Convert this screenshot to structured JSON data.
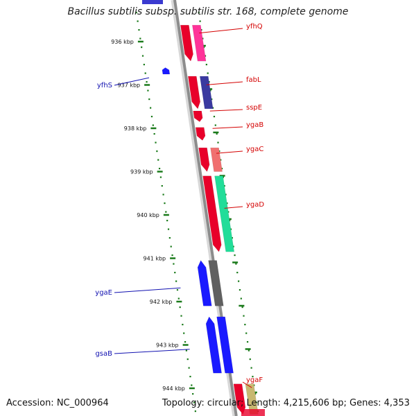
{
  "title": "Bacillus subtilis subsp. subtilis str. 168, complete genome",
  "footer": {
    "accession": "Accession: NC_000964",
    "topology": "Topology: circular; Length: 4,215,606 bp; Genes: 4,353"
  },
  "colors": {
    "forward_label": "#d40000",
    "reverse_label": "#1010b0",
    "backbone": "#8c8c8c",
    "ticks": "#1a7a1a"
  },
  "ticks": [
    {
      "label": "936 kbp",
      "kbp": 936
    },
    {
      "label": "937 kbp",
      "kbp": 937
    },
    {
      "label": "938 kbp",
      "kbp": 938
    },
    {
      "label": "939 kbp",
      "kbp": 939
    },
    {
      "label": "940 kbp",
      "kbp": 940
    },
    {
      "label": "941 kbp",
      "kbp": 941
    },
    {
      "label": "942 kbp",
      "kbp": 942
    },
    {
      "label": "943 kbp",
      "kbp": 943
    },
    {
      "label": "944 kbp",
      "kbp": 944
    }
  ],
  "genes": [
    {
      "name": "yfhQ",
      "strand": "forward",
      "start_kbp": 935.62,
      "end_kbp": 936.45,
      "fill": "#e8002a",
      "partner": "#ff3399"
    },
    {
      "name": "yfhS",
      "strand": "reverse",
      "start_kbp": 936.6,
      "end_kbp": 936.72,
      "fill": "#1a1aff"
    },
    {
      "name": "fabL",
      "strand": "forward",
      "start_kbp": 936.8,
      "end_kbp": 937.55,
      "fill": "#e8002a",
      "partner": "#3a3aa0"
    },
    {
      "name": "sspE",
      "strand": "forward",
      "start_kbp": 937.6,
      "end_kbp": 937.85,
      "fill": "#e8002a"
    },
    {
      "name": "ygaB",
      "strand": "forward",
      "start_kbp": 937.98,
      "end_kbp": 938.28,
      "fill": "#e8002a"
    },
    {
      "name": "ygaC",
      "strand": "forward",
      "start_kbp": 938.45,
      "end_kbp": 939.0,
      "fill": "#e8002a",
      "partner": "#f07070"
    },
    {
      "name": "ygaD",
      "strand": "forward",
      "start_kbp": 939.1,
      "end_kbp": 940.85,
      "fill": "#e8002a",
      "partner": "#22dd99"
    },
    {
      "name": "ygaE",
      "strand": "reverse",
      "start_kbp": 941.05,
      "end_kbp": 942.1,
      "fill": "#1a1aff",
      "partner": "#606060"
    },
    {
      "name": "gsaB",
      "strand": "reverse",
      "start_kbp": 942.35,
      "end_kbp": 943.65,
      "fill": "#1a1aff",
      "partner": "#1a1aff"
    },
    {
      "name": "ygaF",
      "strand": "forward",
      "start_kbp": 943.9,
      "end_kbp": 944.6,
      "fill": "#e8002a",
      "partner": "#c8b870"
    }
  ]
}
